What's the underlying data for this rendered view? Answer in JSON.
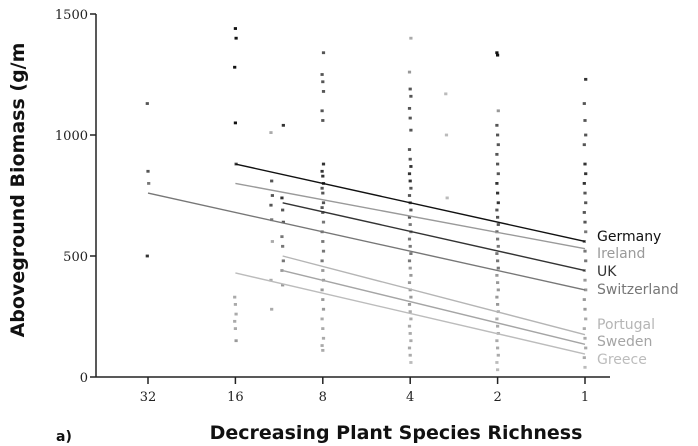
{
  "panel_label": "a)",
  "chart_data": {
    "type": "scatter",
    "xlabel": "Decreasing Plant Species Richness",
    "ylabel": "Aboveground Biomass (g/m",
    "x_categories": [
      32,
      16,
      8,
      4,
      2,
      1
    ],
    "x_tick_labels": [
      "32",
      "16",
      "8",
      "4",
      "2",
      "1"
    ],
    "x_scale": "log2-reversed",
    "ylim": [
      0,
      1500
    ],
    "y_ticks": [
      0,
      500,
      1000,
      1500
    ],
    "y_tick_labels": [
      "0",
      "500",
      "1000",
      "1500"
    ],
    "grid": false,
    "legend": "right, at line ends",
    "series": [
      {
        "name": "Germany",
        "color": "#111111",
        "fit_start": {
          "x": 16,
          "y": 880
        },
        "fit_end": {
          "x": 1,
          "y": 560
        }
      },
      {
        "name": "Ireland",
        "color": "#9a9a9a",
        "fit_start": {
          "x": 16,
          "y": 800
        },
        "fit_end": {
          "x": 1,
          "y": 530
        }
      },
      {
        "name": "UK",
        "color": "#333333",
        "fit_start": {
          "x": 11,
          "y": 720
        },
        "fit_end": {
          "x": 1,
          "y": 440
        }
      },
      {
        "name": "Switzerland",
        "color": "#777777",
        "fit_start": {
          "x": 32,
          "y": 760
        },
        "fit_end": {
          "x": 1,
          "y": 360
        }
      },
      {
        "name": "Portugal",
        "color": "#b5b5b5",
        "fit_start": {
          "x": 11,
          "y": 500
        },
        "fit_end": {
          "x": 1,
          "y": 175
        }
      },
      {
        "name": "Sweden",
        "color": "#a5a5a5",
        "fit_start": {
          "x": 11,
          "y": 440
        },
        "fit_end": {
          "x": 1,
          "y": 135
        }
      },
      {
        "name": "Greece",
        "color": "#bcbcbc",
        "fit_start": {
          "x": 16,
          "y": 430
        },
        "fit_end": {
          "x": 1,
          "y": 95
        }
      }
    ],
    "points": [
      {
        "x": 32,
        "y": 1130,
        "c": "#555"
      },
      {
        "x": 32,
        "y": 850,
        "c": "#555"
      },
      {
        "x": 32,
        "y": 800,
        "c": "#777"
      },
      {
        "x": 32,
        "y": 500,
        "c": "#333"
      },
      {
        "x": 16,
        "y": 1440,
        "c": "#111"
      },
      {
        "x": 16,
        "y": 1400,
        "c": "#111"
      },
      {
        "x": 16,
        "y": 1280,
        "c": "#111"
      },
      {
        "x": 16,
        "y": 1050,
        "c": "#111"
      },
      {
        "x": 16,
        "y": 880,
        "c": "#555"
      },
      {
        "x": 16,
        "y": 330,
        "c": "#aaa"
      },
      {
        "x": 16,
        "y": 300,
        "c": "#aaa"
      },
      {
        "x": 16,
        "y": 260,
        "c": "#aaa"
      },
      {
        "x": 16,
        "y": 230,
        "c": "#aaa"
      },
      {
        "x": 16,
        "y": 200,
        "c": "#aaa"
      },
      {
        "x": 16,
        "y": 150,
        "c": "#999"
      },
      {
        "x": 12,
        "y": 1010,
        "c": "#aaa"
      },
      {
        "x": 12,
        "y": 810,
        "c": "#555"
      },
      {
        "x": 12,
        "y": 750,
        "c": "#555"
      },
      {
        "x": 12,
        "y": 710,
        "c": "#555"
      },
      {
        "x": 12,
        "y": 650,
        "c": "#777"
      },
      {
        "x": 12,
        "y": 560,
        "c": "#aaa"
      },
      {
        "x": 12,
        "y": 400,
        "c": "#aaa"
      },
      {
        "x": 12,
        "y": 280,
        "c": "#aaa"
      },
      {
        "x": 11,
        "y": 1040,
        "c": "#333"
      },
      {
        "x": 11,
        "y": 740,
        "c": "#333"
      },
      {
        "x": 11,
        "y": 690,
        "c": "#555"
      },
      {
        "x": 11,
        "y": 640,
        "c": "#555"
      },
      {
        "x": 11,
        "y": 580,
        "c": "#777"
      },
      {
        "x": 11,
        "y": 540,
        "c": "#777"
      },
      {
        "x": 11,
        "y": 480,
        "c": "#777"
      },
      {
        "x": 11,
        "y": 440,
        "c": "#999"
      },
      {
        "x": 11,
        "y": 380,
        "c": "#999"
      },
      {
        "x": 8,
        "y": 1340,
        "c": "#555"
      },
      {
        "x": 8,
        "y": 1250,
        "c": "#555"
      },
      {
        "x": 8,
        "y": 1220,
        "c": "#555"
      },
      {
        "x": 8,
        "y": 1180,
        "c": "#555"
      },
      {
        "x": 8,
        "y": 1100,
        "c": "#555"
      },
      {
        "x": 8,
        "y": 1060,
        "c": "#555"
      },
      {
        "x": 8,
        "y": 880,
        "c": "#333"
      },
      {
        "x": 8,
        "y": 850,
        "c": "#333"
      },
      {
        "x": 8,
        "y": 830,
        "c": "#333"
      },
      {
        "x": 8,
        "y": 800,
        "c": "#333"
      },
      {
        "x": 8,
        "y": 780,
        "c": "#555"
      },
      {
        "x": 8,
        "y": 760,
        "c": "#555"
      },
      {
        "x": 8,
        "y": 720,
        "c": "#555"
      },
      {
        "x": 8,
        "y": 700,
        "c": "#555"
      },
      {
        "x": 8,
        "y": 680,
        "c": "#555"
      },
      {
        "x": 8,
        "y": 640,
        "c": "#777"
      },
      {
        "x": 8,
        "y": 600,
        "c": "#777"
      },
      {
        "x": 8,
        "y": 560,
        "c": "#777"
      },
      {
        "x": 8,
        "y": 520,
        "c": "#777"
      },
      {
        "x": 8,
        "y": 480,
        "c": "#777"
      },
      {
        "x": 8,
        "y": 440,
        "c": "#999"
      },
      {
        "x": 8,
        "y": 400,
        "c": "#999"
      },
      {
        "x": 8,
        "y": 360,
        "c": "#999"
      },
      {
        "x": 8,
        "y": 320,
        "c": "#999"
      },
      {
        "x": 8,
        "y": 280,
        "c": "#999"
      },
      {
        "x": 8,
        "y": 240,
        "c": "#aaa"
      },
      {
        "x": 8,
        "y": 200,
        "c": "#aaa"
      },
      {
        "x": 8,
        "y": 160,
        "c": "#aaa"
      },
      {
        "x": 8,
        "y": 130,
        "c": "#aaa"
      },
      {
        "x": 8,
        "y": 110,
        "c": "#aaa"
      },
      {
        "x": 4,
        "y": 1400,
        "c": "#aaa"
      },
      {
        "x": 4,
        "y": 1260,
        "c": "#999"
      },
      {
        "x": 4,
        "y": 1190,
        "c": "#555"
      },
      {
        "x": 4,
        "y": 1160,
        "c": "#555"
      },
      {
        "x": 4,
        "y": 1110,
        "c": "#555"
      },
      {
        "x": 4,
        "y": 1070,
        "c": "#555"
      },
      {
        "x": 4,
        "y": 1020,
        "c": "#555"
      },
      {
        "x": 4,
        "y": 940,
        "c": "#555"
      },
      {
        "x": 4,
        "y": 900,
        "c": "#555"
      },
      {
        "x": 4,
        "y": 870,
        "c": "#333"
      },
      {
        "x": 4,
        "y": 840,
        "c": "#333"
      },
      {
        "x": 4,
        "y": 810,
        "c": "#333"
      },
      {
        "x": 4,
        "y": 780,
        "c": "#555"
      },
      {
        "x": 4,
        "y": 750,
        "c": "#555"
      },
      {
        "x": 4,
        "y": 720,
        "c": "#555"
      },
      {
        "x": 4,
        "y": 690,
        "c": "#555"
      },
      {
        "x": 4,
        "y": 660,
        "c": "#555"
      },
      {
        "x": 4,
        "y": 630,
        "c": "#777"
      },
      {
        "x": 4,
        "y": 600,
        "c": "#777"
      },
      {
        "x": 4,
        "y": 570,
        "c": "#777"
      },
      {
        "x": 4,
        "y": 540,
        "c": "#777"
      },
      {
        "x": 4,
        "y": 510,
        "c": "#777"
      },
      {
        "x": 4,
        "y": 480,
        "c": "#777"
      },
      {
        "x": 4,
        "y": 450,
        "c": "#999"
      },
      {
        "x": 4,
        "y": 420,
        "c": "#999"
      },
      {
        "x": 4,
        "y": 390,
        "c": "#999"
      },
      {
        "x": 4,
        "y": 360,
        "c": "#999"
      },
      {
        "x": 4,
        "y": 330,
        "c": "#999"
      },
      {
        "x": 4,
        "y": 300,
        "c": "#999"
      },
      {
        "x": 4,
        "y": 270,
        "c": "#aaa"
      },
      {
        "x": 4,
        "y": 240,
        "c": "#aaa"
      },
      {
        "x": 4,
        "y": 210,
        "c": "#aaa"
      },
      {
        "x": 4,
        "y": 180,
        "c": "#aaa"
      },
      {
        "x": 4,
        "y": 150,
        "c": "#aaa"
      },
      {
        "x": 4,
        "y": 120,
        "c": "#aaa"
      },
      {
        "x": 4,
        "y": 90,
        "c": "#aaa"
      },
      {
        "x": 4,
        "y": 60,
        "c": "#bbb"
      },
      {
        "x": 3,
        "y": 1170,
        "c": "#bbb"
      },
      {
        "x": 3,
        "y": 1000,
        "c": "#bbb"
      },
      {
        "x": 3,
        "y": 740,
        "c": "#bbb"
      },
      {
        "x": 2,
        "y": 1340,
        "c": "#111"
      },
      {
        "x": 2,
        "y": 1330,
        "c": "#111"
      },
      {
        "x": 2,
        "y": 1100,
        "c": "#999"
      },
      {
        "x": 2,
        "y": 1040,
        "c": "#555"
      },
      {
        "x": 2,
        "y": 1000,
        "c": "#555"
      },
      {
        "x": 2,
        "y": 960,
        "c": "#555"
      },
      {
        "x": 2,
        "y": 920,
        "c": "#555"
      },
      {
        "x": 2,
        "y": 880,
        "c": "#555"
      },
      {
        "x": 2,
        "y": 840,
        "c": "#555"
      },
      {
        "x": 2,
        "y": 800,
        "c": "#333"
      },
      {
        "x": 2,
        "y": 760,
        "c": "#333"
      },
      {
        "x": 2,
        "y": 720,
        "c": "#333"
      },
      {
        "x": 2,
        "y": 690,
        "c": "#555"
      },
      {
        "x": 2,
        "y": 660,
        "c": "#555"
      },
      {
        "x": 2,
        "y": 630,
        "c": "#555"
      },
      {
        "x": 2,
        "y": 600,
        "c": "#555"
      },
      {
        "x": 2,
        "y": 570,
        "c": "#777"
      },
      {
        "x": 2,
        "y": 540,
        "c": "#777"
      },
      {
        "x": 2,
        "y": 510,
        "c": "#777"
      },
      {
        "x": 2,
        "y": 480,
        "c": "#777"
      },
      {
        "x": 2,
        "y": 450,
        "c": "#777"
      },
      {
        "x": 2,
        "y": 420,
        "c": "#999"
      },
      {
        "x": 2,
        "y": 390,
        "c": "#999"
      },
      {
        "x": 2,
        "y": 360,
        "c": "#999"
      },
      {
        "x": 2,
        "y": 330,
        "c": "#999"
      },
      {
        "x": 2,
        "y": 300,
        "c": "#999"
      },
      {
        "x": 2,
        "y": 270,
        "c": "#aaa"
      },
      {
        "x": 2,
        "y": 240,
        "c": "#aaa"
      },
      {
        "x": 2,
        "y": 210,
        "c": "#aaa"
      },
      {
        "x": 2,
        "y": 180,
        "c": "#aaa"
      },
      {
        "x": 2,
        "y": 150,
        "c": "#aaa"
      },
      {
        "x": 2,
        "y": 120,
        "c": "#aaa"
      },
      {
        "x": 2,
        "y": 90,
        "c": "#aaa"
      },
      {
        "x": 2,
        "y": 60,
        "c": "#bbb"
      },
      {
        "x": 2,
        "y": 30,
        "c": "#bbb"
      },
      {
        "x": 1,
        "y": 1230,
        "c": "#333"
      },
      {
        "x": 1,
        "y": 1130,
        "c": "#555"
      },
      {
        "x": 1,
        "y": 1060,
        "c": "#555"
      },
      {
        "x": 1,
        "y": 1000,
        "c": "#555"
      },
      {
        "x": 1,
        "y": 960,
        "c": "#555"
      },
      {
        "x": 1,
        "y": 880,
        "c": "#333"
      },
      {
        "x": 1,
        "y": 840,
        "c": "#333"
      },
      {
        "x": 1,
        "y": 800,
        "c": "#333"
      },
      {
        "x": 1,
        "y": 760,
        "c": "#555"
      },
      {
        "x": 1,
        "y": 720,
        "c": "#555"
      },
      {
        "x": 1,
        "y": 680,
        "c": "#555"
      },
      {
        "x": 1,
        "y": 640,
        "c": "#555"
      },
      {
        "x": 1,
        "y": 600,
        "c": "#777"
      },
      {
        "x": 1,
        "y": 560,
        "c": "#777"
      },
      {
        "x": 1,
        "y": 520,
        "c": "#777"
      },
      {
        "x": 1,
        "y": 480,
        "c": "#777"
      },
      {
        "x": 1,
        "y": 440,
        "c": "#999"
      },
      {
        "x": 1,
        "y": 400,
        "c": "#999"
      },
      {
        "x": 1,
        "y": 360,
        "c": "#999"
      },
      {
        "x": 1,
        "y": 320,
        "c": "#999"
      },
      {
        "x": 1,
        "y": 280,
        "c": "#999"
      },
      {
        "x": 1,
        "y": 240,
        "c": "#aaa"
      },
      {
        "x": 1,
        "y": 200,
        "c": "#aaa"
      },
      {
        "x": 1,
        "y": 160,
        "c": "#aaa"
      },
      {
        "x": 1,
        "y": 120,
        "c": "#aaa"
      },
      {
        "x": 1,
        "y": 80,
        "c": "#aaa"
      },
      {
        "x": 1,
        "y": 40,
        "c": "#bbb"
      }
    ]
  }
}
